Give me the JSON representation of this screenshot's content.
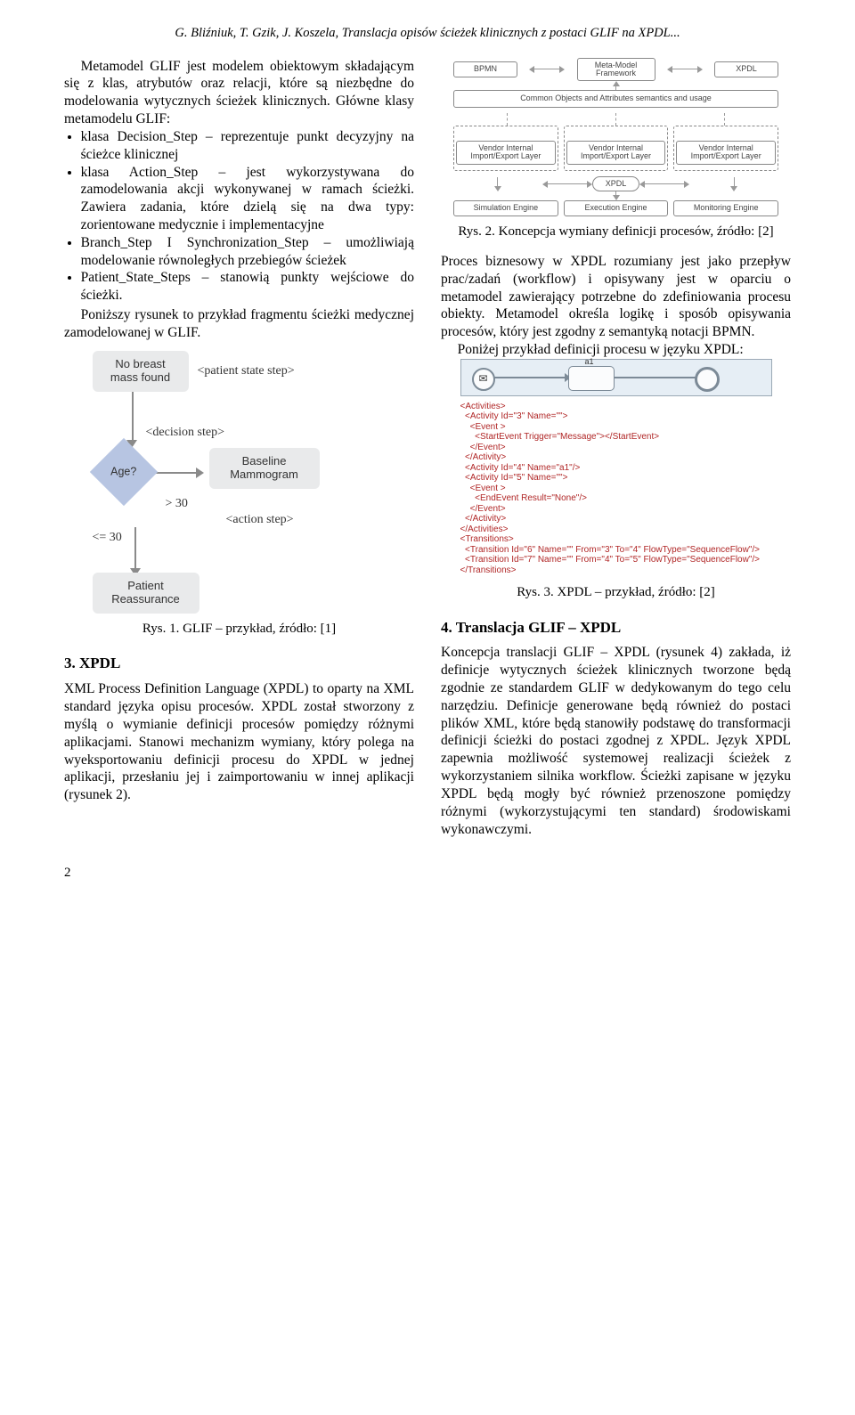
{
  "running_head": "G. Bliźniuk, T. Gzik, J. Koszela, Translacja opisów ścieżek klinicznych z postaci GLIF na XPDL...",
  "page_number": "2",
  "intro_para": "Metamodel GLIF jest modelem obiektowym składającym się z klas, atrybutów oraz relacji, które są niezbędne do modelowania wytycznych ścieżek klinicznych. Główne klasy metamodelu GLIF:",
  "glif_bullets": [
    "klasa Decision_Step – reprezentuje punkt decyzyjny na ścieżce klinicznej",
    "klasa Action_Step – jest wykorzystywana do zamodelowania akcji wykonywanej w ramach ścieżki. Zawiera zadania, które dzielą się na dwa typy: zorientowane medycznie i implementacyjne",
    "Branch_Step I Synchronization_Step – umożliwiają modelowanie równoległych przebiegów ścieżek",
    "Patient_State_Steps – stanowią punkty wejściowe do ścieżki."
  ],
  "glif_after": "Poniższy rysunek to przykład fragmentu ścieżki medycznej zamodelowanej w GLIF.",
  "fig1": {
    "no_breast": "No breast\nmass found",
    "patient_state": "<patient state step>",
    "decision_step": "<decision step>",
    "age": "Age?",
    "gt30": "> 30",
    "le30": "<= 30",
    "baseline": "Baseline\nMammogram",
    "action_step": "<action step>",
    "patient_reassure": "Patient\nReassurance",
    "caption": "Rys. 1. GLIF – przykład, źródło: [1]"
  },
  "sect3_title": "3.  XPDL",
  "sect3_para": "XML Process Definition Language (XPDL) to oparty na XML standard języka opisu procesów. XPDL został stworzony z myślą o wymianie definicji procesów pomiędzy różnymi aplikacjami. Stanowi mechanizm wymiany, który polega na wyeksportowaniu definicji procesu do XPDL w jednej aplikacji, przesłaniu jej i zaimportowaniu w innej aplikacji (rysunek 2).",
  "fig2": {
    "top": [
      "BPMN",
      "Meta-Model\nFramework",
      "XPDL"
    ],
    "common": "Common Objects and Attributes semantics and usage",
    "vendor": "Vendor Internal\nImport/Export Layer",
    "xpdl": "XPDL",
    "bottom": [
      "Simulation Engine",
      "Execution Engine",
      "Monitoring Engine"
    ],
    "caption": "Rys. 2. Koncepcja wymiany definicji procesów, źródło: [2]"
  },
  "right_para1": "Proces biznesowy w XPDL rozumiany jest jako przepływ prac/zadań (workflow) i opisywany jest w oparciu o metamodel zawierający potrzebne do zdefiniowania procesu obiekty. Metamodel określa logikę i sposób opisywania procesów, który jest zgodny z semantyką notacji BPMN.",
  "right_para2": "Poniżej przykład definicji procesu w języku XPDL:",
  "fig3": {
    "a1": "a1",
    "xml": "<Activities>\n  <Activity Id=\"3\" Name=\"\">\n    <Event >\n      <StartEvent Trigger=\"Message\"></StartEvent>\n    </Event>\n  </Activity>\n  <Activity Id=\"4\" Name=\"a1\"/>\n  <Activity Id=\"5\" Name=\"\">\n    <Event >\n      <EndEvent Result=\"None\"/>\n    </Event>\n  </Activity>\n</Activities>\n<Transitions>\n  <Transition Id=\"6\" Name=\"\" From=\"3\" To=\"4\" FlowType=\"SequenceFlow\"/>\n  <Transition Id=\"7\" Name=\"\" From=\"4\" To=\"5\" FlowType=\"SequenceFlow\"/>\n</Transitions>",
    "caption": "Rys. 3. XPDL – przykład, źródło: [2]"
  },
  "sect4_title": "4.  Translacja GLIF – XPDL",
  "sect4_para": "Koncepcja translacji GLIF – XPDL (rysunek 4) zakłada, iż definicje wytycznych ścieżek klinicznych tworzone będą zgodnie ze standardem GLIF w dedykowanym do tego celu narzędziu. Definicje generowane będą również do postaci plików XML, które będą stanowiły podstawę do transformacji definicji ścieżki do postaci zgodnej z XPDL. Język XPDL zapewnia możliwość systemowej realizacji ścieżek z wykorzystaniem silnika workflow. Ścieżki zapisane w języku XPDL będą mogły być również przenoszone pomiędzy różnymi (wykorzystującymi ten standard) środowiskami wykonawczymi."
}
